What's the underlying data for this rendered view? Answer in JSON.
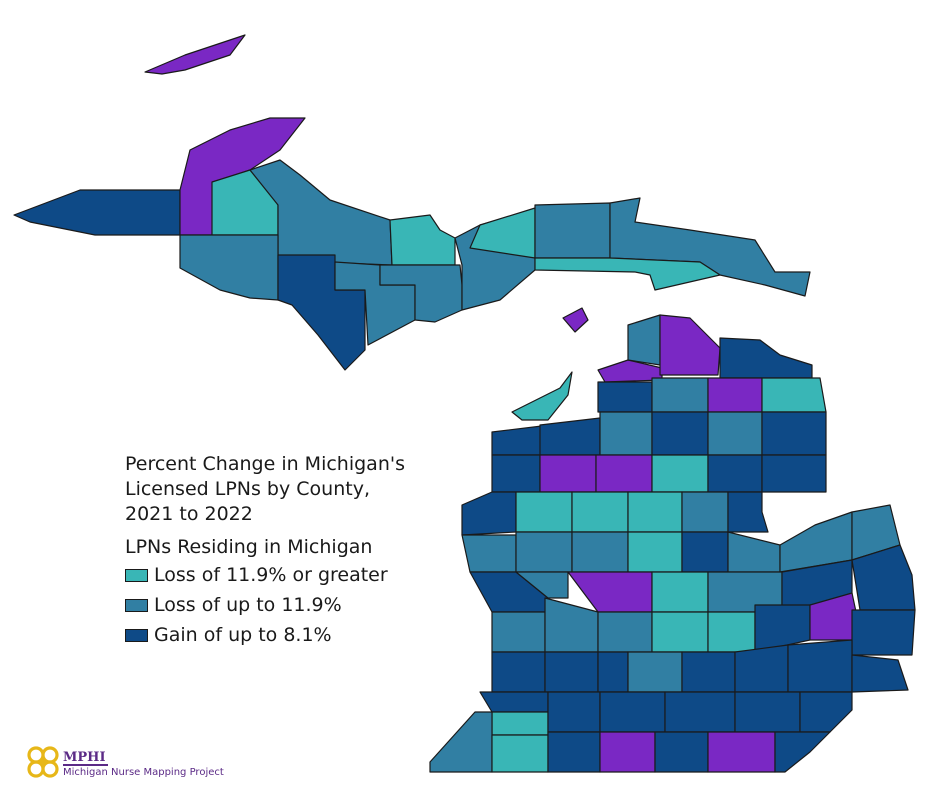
{
  "legend": {
    "title_lines": [
      "Percent Change in Michigan's",
      "Licensed LPNs by County,",
      "2021 to 2022"
    ],
    "subtitle": "LPNs Residing in Michigan",
    "classes": [
      {
        "id": "loss_large",
        "label": "Loss of 11.9% or greater",
        "color": "#39b6b6"
      },
      {
        "id": "loss_small",
        "label": "Loss of up to 11.9%",
        "color": "#317fa3"
      },
      {
        "id": "gain_small",
        "label": "Gain of up to 8.1%",
        "color": "#0e4a87"
      }
    ]
  },
  "gain_large_color": "#7a28c4",
  "logo": {
    "name": "MPHI",
    "project": "Michigan Nurse Mapping Project"
  }
}
